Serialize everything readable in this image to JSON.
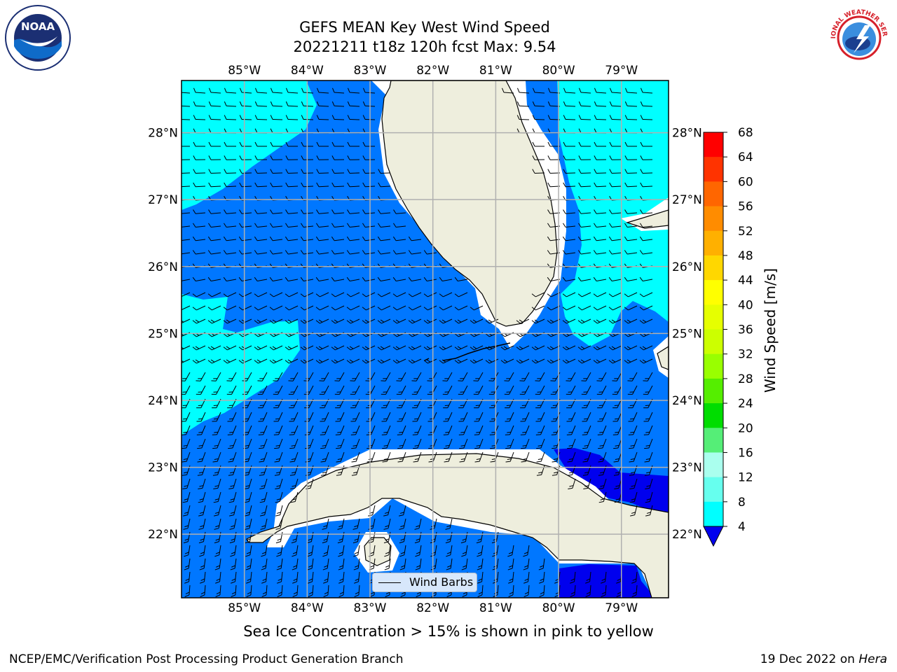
{
  "header": {
    "title_line1": "GEFS MEAN Key West Wind Speed",
    "title_line2": "20221211 t18z 120h fcst   Max: 9.54"
  },
  "logos": {
    "left": {
      "icon": "noaa-logo",
      "text": "NOAA"
    },
    "right": {
      "icon": "nws-logo",
      "text": "NATIONAL WEATHER SERVICE"
    }
  },
  "map": {
    "lon_labels": [
      "85°W",
      "84°W",
      "83°W",
      "82°W",
      "81°W",
      "80°W",
      "79°W"
    ],
    "lat_labels": [
      "28°N",
      "27°N",
      "26°N",
      "25°N",
      "24°N",
      "23°N",
      "22°N"
    ],
    "extent": {
      "lon_min": -86.0,
      "lon_max": -78.25,
      "lat_min": 21.05,
      "lat_max": 28.78
    },
    "legend_label": "Wind Barbs",
    "wind_speed_max": 9.54
  },
  "colorbar": {
    "label": "Wind Speed [m/s]",
    "ticks": [
      "68",
      "64",
      "60",
      "56",
      "52",
      "48",
      "44",
      "40",
      "36",
      "32",
      "28",
      "24",
      "20",
      "16",
      "12",
      "8",
      "4"
    ],
    "colors": [
      "#ff0000",
      "#ff3300",
      "#ff6600",
      "#ff8c00",
      "#ffb000",
      "#ffd700",
      "#ffff00",
      "#e6ff00",
      "#ccff00",
      "#99ff00",
      "#55ee00",
      "#00dd00",
      "#55ee77",
      "#aaffee",
      "#66ffee",
      "#00ffff",
      "#0077ff"
    ],
    "under_color": "#0000ee"
  },
  "caption": "Sea Ice Concentration > 15% is shown in pink to yellow",
  "footer": {
    "left": "NCEP/EMC/Verification Post Processing Product Generation Branch",
    "right_date": "19 Dec 2022 on ",
    "right_host": "Hera"
  },
  "palette": {
    "ocean_low": "#0077ff",
    "ocean_mid": "#00ffff",
    "ocean_min": "#0000ee",
    "land": "#eeeedd",
    "grid": "#b0b0b0"
  }
}
